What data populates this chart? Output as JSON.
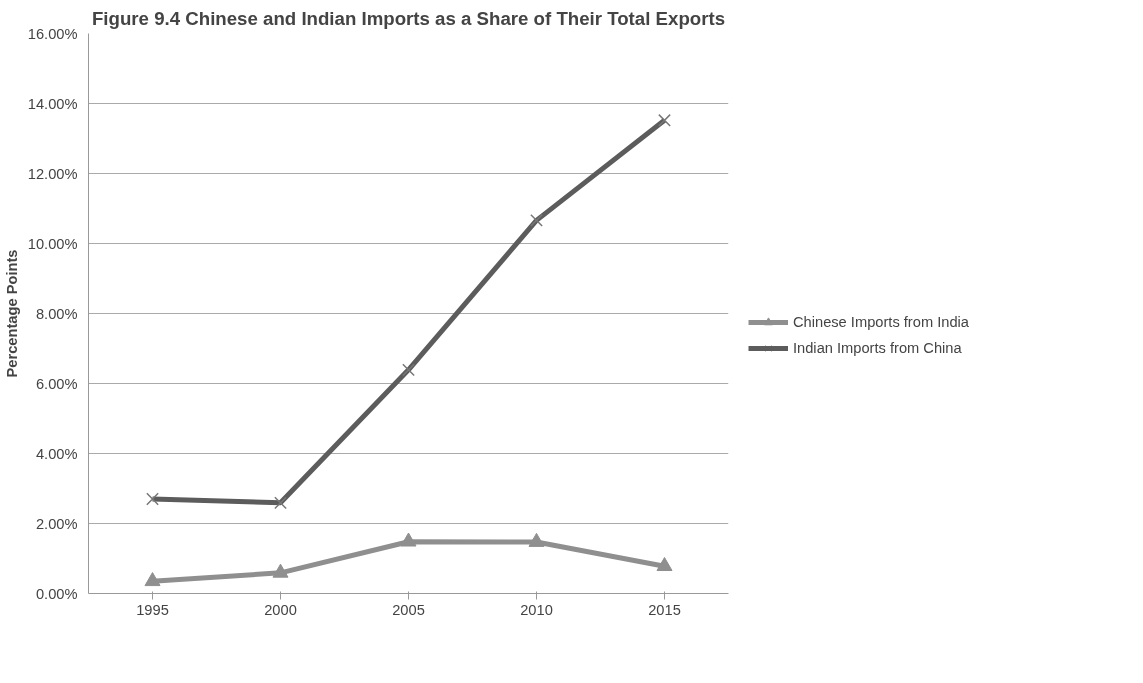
{
  "chart_data": {
    "type": "line",
    "title": "Figure 9.4 Chinese and Indian Imports as a Share of Their Total Exports",
    "ylabel": "Percentage Points",
    "categories": [
      "1995",
      "2000",
      "2005",
      "2010",
      "2015"
    ],
    "series": [
      {
        "name": "Chinese Imports from India",
        "color": "#8f8f8f",
        "marker": "triangle",
        "values": [
          0.35,
          0.59,
          1.48,
          1.47,
          0.78
        ]
      },
      {
        "name": "Indian Imports from China",
        "color": "#5c5c5c",
        "marker": "cross",
        "values": [
          2.7,
          2.59,
          6.39,
          10.66,
          13.52
        ]
      }
    ],
    "ylim": [
      0,
      16
    ],
    "yticks": [
      {
        "value": 0,
        "label": "0.00%"
      },
      {
        "value": 2,
        "label": "2.00%"
      },
      {
        "value": 4,
        "label": "4.00%"
      },
      {
        "value": 6,
        "label": "6.00%"
      },
      {
        "value": 8,
        "label": "8.00%"
      },
      {
        "value": 10,
        "label": "10.00%"
      },
      {
        "value": 12,
        "label": "12.00%"
      },
      {
        "value": 14,
        "label": "14.00%"
      },
      {
        "value": 16,
        "label": "16.00%"
      }
    ],
    "grid": "y",
    "legend": "right",
    "line_style": "solid"
  }
}
